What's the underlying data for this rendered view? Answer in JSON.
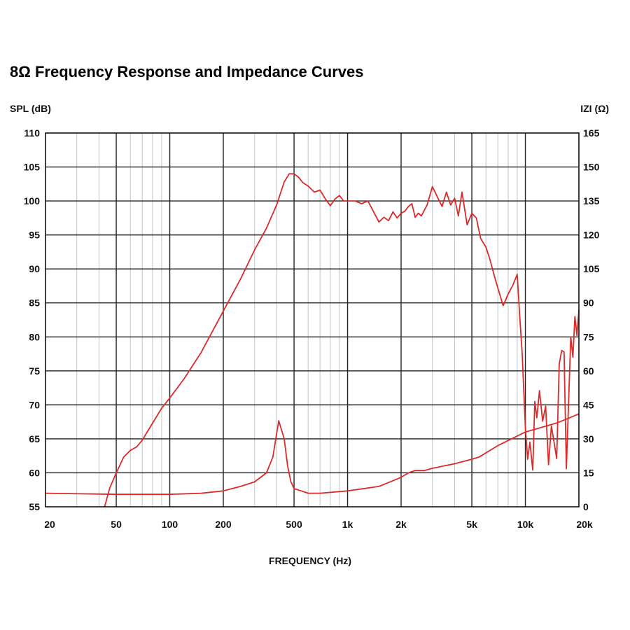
{
  "chart_data": {
    "type": "line",
    "title": "8Ω Frequency Response and Impedance Curves",
    "xlabel": "FREQUENCY (Hz)",
    "ylabel_left": "SPL (dB)",
    "ylabel_right": "IZI (Ω)",
    "x_scale": "log",
    "xlim": [
      20,
      20000
    ],
    "ylim_left": [
      55,
      110
    ],
    "ylim_right": [
      0,
      165
    ],
    "grid": true,
    "x_tick_values": [
      20,
      50,
      100,
      200,
      500,
      1000,
      2000,
      5000,
      10000,
      20000
    ],
    "x_tick_labels": [
      "20",
      "50",
      "100",
      "200",
      "500",
      "1k",
      "2k",
      "5k",
      "10k",
      "20k"
    ],
    "y_left_ticks": [
      110,
      105,
      100,
      95,
      90,
      85,
      80,
      75,
      70,
      65,
      60,
      55
    ],
    "y_right_ticks": [
      165,
      150,
      135,
      120,
      105,
      90,
      75,
      60,
      45,
      30,
      15,
      0
    ],
    "line_color": "#dc2a2a",
    "series": [
      {
        "axis": "left",
        "x": [
          43,
          46,
          50,
          55,
          60,
          65,
          70,
          80,
          90,
          100,
          120,
          150,
          200,
          250,
          300,
          350,
          400,
          440,
          470,
          500,
          530,
          560,
          600,
          650,
          700,
          750,
          800,
          850,
          900,
          950,
          1000,
          1100,
          1200,
          1300,
          1400,
          1500,
          1600,
          1700,
          1800,
          1900,
          2000,
          2100,
          2200,
          2300,
          2400,
          2500,
          2600,
          2800,
          3000,
          3200,
          3400,
          3600,
          3800,
          4000,
          4200,
          4400,
          4700,
          5000,
          5300,
          5600,
          6000,
          6300,
          6700,
          7000,
          7500,
          8000,
          8500,
          9000,
          9300,
          9600,
          10000,
          10300,
          10600,
          11000,
          11300,
          11600,
          12000,
          12500,
          13000,
          13500,
          14000,
          15000,
          15500,
          16000,
          16500,
          17000,
          18000,
          18500,
          19000,
          19500,
          20000
        ],
        "y": [
          55.0,
          57.8,
          60.0,
          62.3,
          63.3,
          63.8,
          64.8,
          67.3,
          69.5,
          71.0,
          73.8,
          77.7,
          83.8,
          88.5,
          92.8,
          96.0,
          99.5,
          102.8,
          104.0,
          104.0,
          103.5,
          102.7,
          102.2,
          101.3,
          101.6,
          100.3,
          99.3,
          100.3,
          100.8,
          100.0,
          100.0,
          100.0,
          99.6,
          100.0,
          98.4,
          96.9,
          97.6,
          97.1,
          98.4,
          97.5,
          98.2,
          98.5,
          99.2,
          99.6,
          97.6,
          98.2,
          97.8,
          99.4,
          102.1,
          100.6,
          99.2,
          101.3,
          99.4,
          100.4,
          97.8,
          101.3,
          96.5,
          98.2,
          97.5,
          94.5,
          93.2,
          91.5,
          88.9,
          87.2,
          84.6,
          86.3,
          87.6,
          89.2,
          83.0,
          77.5,
          66.7,
          62.0,
          64.5,
          60.4,
          70.5,
          68.1,
          72.1,
          67.6,
          69.8,
          61.2,
          66.9,
          62.1,
          76.0,
          78.0,
          77.8,
          60.6,
          80.0,
          77.0,
          83.0,
          80.2,
          84.0
        ]
      },
      {
        "axis": "right",
        "x": [
          20,
          50,
          100,
          150,
          200,
          250,
          300,
          350,
          380,
          410,
          440,
          460,
          480,
          500,
          550,
          600,
          700,
          1000,
          1500,
          2000,
          2200,
          2400,
          2700,
          3000,
          4000,
          5000,
          5500,
          7000,
          10000,
          15000,
          20000
        ],
        "y": [
          6,
          5.5,
          5.5,
          6,
          7,
          9,
          11,
          15,
          22,
          38,
          30,
          18,
          11,
          8,
          7,
          6,
          6,
          7,
          9,
          13,
          15,
          16,
          16,
          17,
          19,
          21,
          22,
          27,
          33,
          37,
          41
        ]
      }
    ]
  }
}
